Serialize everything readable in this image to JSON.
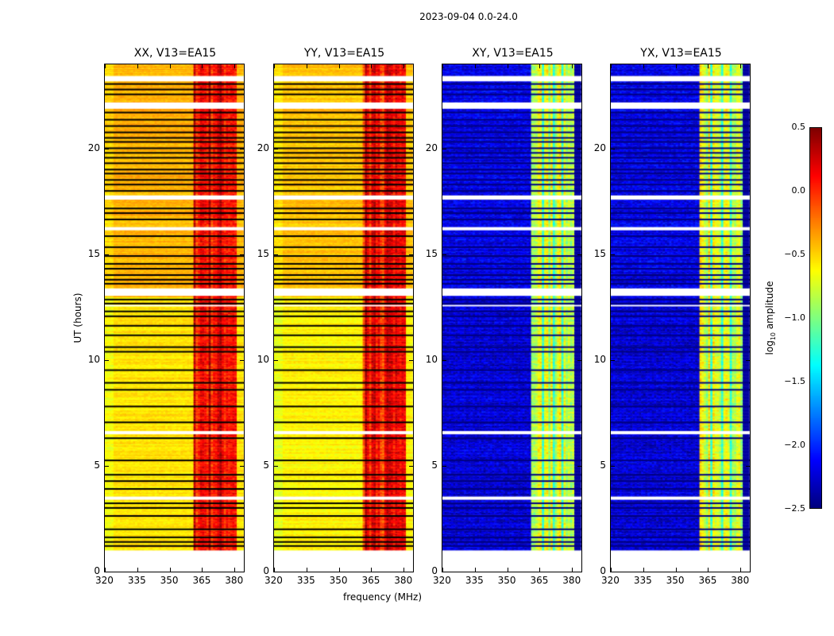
{
  "suptitle": "2023-09-04 0.0-24.0",
  "chart_data": {
    "type": "heatmap",
    "title": "2023-09-04 0.0-24.0",
    "xlabel": "frequency (MHz)",
    "ylabel": "UT (hours)",
    "xlim": [
      320,
      384.3
    ],
    "ylim": [
      0,
      24
    ],
    "xticks": [
      "320",
      "335",
      "350",
      "365",
      "380"
    ],
    "xtick_values": [
      320,
      335,
      350,
      365,
      380
    ],
    "yticks": [
      "0",
      "5",
      "10",
      "15",
      "20"
    ],
    "ytick_values": [
      0,
      5,
      10,
      15,
      20
    ],
    "data_time_range": [
      1.0,
      24.0
    ],
    "colormap": "jet",
    "colorbar": {
      "label_main": "log",
      "label_sub": "10",
      "label_rest": " amplitude",
      "range": [
        -2.5,
        0.5
      ],
      "ticks": [
        "0.5",
        "0.0",
        "−0.5",
        "−1.0",
        "−1.5",
        "−2.0",
        "−2.5"
      ],
      "tick_values": [
        0.5,
        0.0,
        -0.5,
        -1.0,
        -1.5,
        -2.0,
        -2.5
      ]
    },
    "flagged_hours": [
      23.06,
      22.8,
      22.57,
      21.71,
      21.37,
      21.07,
      20.77,
      20.51,
      20.32,
      20.02,
      19.8,
      19.57,
      19.31,
      19.01,
      18.82,
      18.52,
      18.3,
      18.0,
      17.17,
      16.95,
      16.65,
      15.86,
      15.34,
      14.92,
      14.55,
      14.32,
      14.02,
      13.8,
      13.61,
      12.86,
      12.67,
      12.3,
      12.07,
      11.62,
      11.17,
      10.61,
      10.39,
      9.52,
      8.92,
      8.59,
      7.8,
      7.05,
      6.3,
      5.25,
      4.57,
      4.27,
      3.9,
      3.22,
      3.0,
      2.62,
      1.99,
      1.61,
      1.39,
      1.2
    ],
    "gap_hours": [
      [
        23.2,
        23.45
      ],
      [
        21.9,
        22.2
      ],
      [
        17.6,
        17.8
      ],
      [
        16.15,
        16.3
      ],
      [
        13.05,
        13.4
      ],
      [
        12.55,
        12.62
      ],
      [
        6.5,
        6.65
      ],
      [
        3.4,
        3.55
      ]
    ],
    "panels": [
      {
        "title": "XX, V13=EA15",
        "low_band_level": -0.4,
        "high_band_start": 361,
        "high_band_end": 381,
        "high_band_level": 0.15,
        "early_low_level": -0.55
      },
      {
        "title": "YY, V13=EA15",
        "low_band_level": -0.45,
        "high_band_start": 361,
        "high_band_end": 381,
        "high_band_level": 0.1,
        "early_low_level": -0.6
      },
      {
        "title": "XY, V13=EA15",
        "low_band_level": -2.2,
        "high_band_start": 361,
        "high_band_end": 381,
        "high_band_level": -0.75,
        "early_low_level": -2.25
      },
      {
        "title": "YX, V13=EA15",
        "low_band_level": -2.2,
        "high_band_start": 361,
        "high_band_end": 381,
        "high_band_level": -0.75,
        "early_low_level": -2.25
      }
    ]
  }
}
